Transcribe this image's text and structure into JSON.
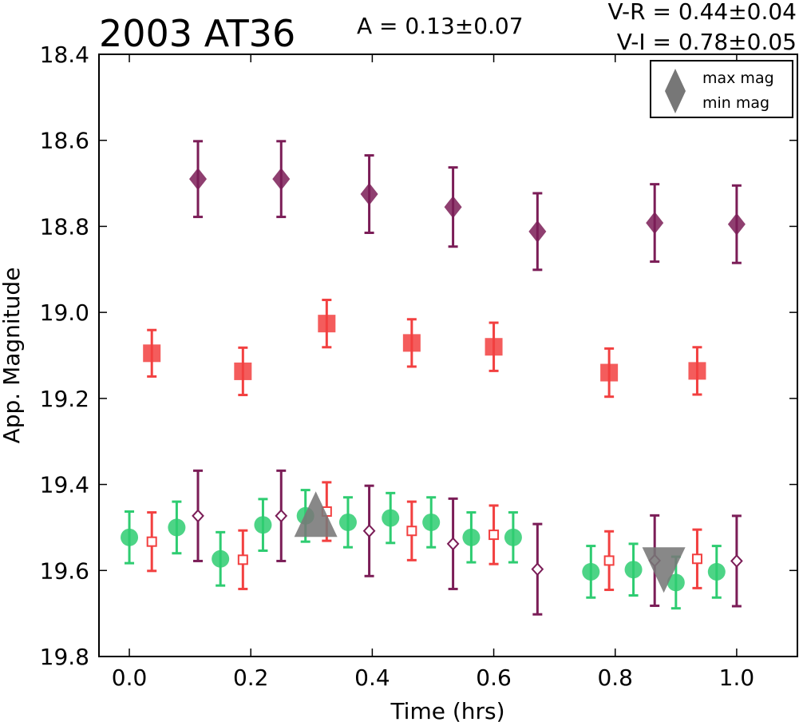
{
  "chart_data": {
    "type": "scatter",
    "title": "2003 AT36",
    "amplitude_label": "A  = 0.13±0.07",
    "color_labels": [
      "V-R = 0.44±0.04",
      "V-I  = 0.78±0.05"
    ],
    "xlabel": "Time (hrs)",
    "ylabel": "App. Magnitude",
    "xlim": [
      -0.05,
      1.1
    ],
    "ylim": [
      19.8,
      18.4
    ],
    "y_inverted": true,
    "xticks": [
      "0.0",
      "0.2",
      "0.4",
      "0.6",
      "0.8",
      "1.0"
    ],
    "yticks": [
      "18.4",
      "18.6",
      "18.8",
      "19.0",
      "19.2",
      "19.4",
      "19.6",
      "19.8"
    ],
    "grid": false,
    "legend": {
      "placement": "top-right",
      "entries": [
        {
          "label": "max mag",
          "marker": "triangle-up",
          "color": "#777777"
        },
        {
          "label": "min mag",
          "marker": "triangle-down",
          "color": "#777777"
        }
      ]
    },
    "series": [
      {
        "marker": "diamond",
        "filled": true,
        "color": "#7b1d57",
        "x": [
          0.113,
          0.25,
          0.395,
          0.533,
          0.672,
          0.865,
          1.0
        ],
        "y": [
          18.69,
          18.69,
          18.725,
          18.755,
          18.812,
          18.792,
          18.795
        ],
        "err": [
          0.088,
          0.088,
          0.09,
          0.092,
          0.089,
          0.09,
          0.09
        ]
      },
      {
        "marker": "square",
        "filled": true,
        "color": "#f24040",
        "x": [
          0.037,
          0.187,
          0.325,
          0.465,
          0.6,
          0.79,
          0.935
        ],
        "y": [
          19.095,
          19.137,
          19.026,
          19.071,
          19.08,
          19.14,
          19.136
        ],
        "err": [
          0.054,
          0.055,
          0.055,
          0.055,
          0.056,
          0.056,
          0.055
        ]
      },
      {
        "marker": "circle",
        "filled": true,
        "color": "#2ecc71",
        "x": [
          0.0,
          0.078,
          0.15,
          0.22,
          0.29,
          0.36,
          0.43,
          0.497,
          0.563,
          0.632,
          0.76,
          0.83,
          0.9,
          0.967
        ],
        "y": [
          19.523,
          19.5,
          19.573,
          19.494,
          19.473,
          19.488,
          19.478,
          19.488,
          19.523,
          19.523,
          19.603,
          19.598,
          19.628,
          19.603
        ],
        "err": [
          0.06,
          0.06,
          0.062,
          0.06,
          0.06,
          0.058,
          0.058,
          0.058,
          0.058,
          0.058,
          0.06,
          0.06,
          0.06,
          0.06
        ]
      },
      {
        "marker": "square",
        "filled": false,
        "color": "#f24040",
        "x": [
          0.037,
          0.187,
          0.325,
          0.465,
          0.6,
          0.79,
          0.935
        ],
        "y": [
          19.533,
          19.575,
          19.463,
          19.508,
          19.517,
          19.577,
          19.573
        ],
        "err": [
          0.068,
          0.068,
          0.068,
          0.068,
          0.068,
          0.068,
          0.068
        ]
      },
      {
        "marker": "diamond",
        "filled": false,
        "color": "#7b1d57",
        "x": [
          0.113,
          0.25,
          0.395,
          0.533,
          0.672,
          0.865,
          1.0
        ],
        "y": [
          19.473,
          19.473,
          19.508,
          19.538,
          19.597,
          19.577,
          19.578
        ],
        "err": [
          0.105,
          0.105,
          0.105,
          0.105,
          0.105,
          0.105,
          0.105
        ]
      }
    ],
    "annotations": [
      {
        "marker": "triangle-up",
        "color": "#777777",
        "x": 0.307,
        "y": 19.47,
        "label": "max mag"
      },
      {
        "marker": "triangle-down",
        "color": "#777777",
        "x": 0.88,
        "y": 19.6,
        "label": "min mag"
      }
    ]
  }
}
